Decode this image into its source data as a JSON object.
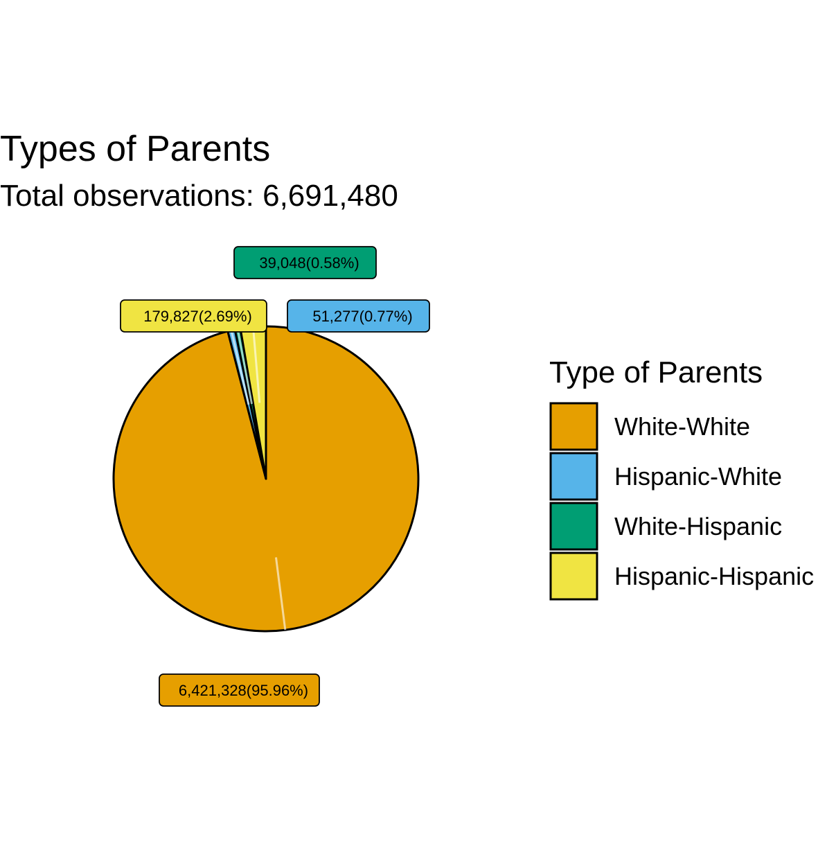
{
  "chart_data": {
    "type": "pie",
    "title": "Types of Parents",
    "subtitle": "Total observations: 6,691,480",
    "legend": {
      "title": "Type of Parents",
      "placement": "right"
    },
    "slices": [
      {
        "name": "White-White",
        "value": 6421328,
        "percent": 95.96,
        "label": "6,421,328(95.96%)",
        "color": "#E69F00"
      },
      {
        "name": "Hispanic-White",
        "value": 51277,
        "percent": 0.77,
        "label": "51,277(0.77%)",
        "color": "#56B4E9"
      },
      {
        "name": "White-Hispanic",
        "value": 39048,
        "percent": 0.58,
        "label": "39,048(0.58%)",
        "color": "#009E73"
      },
      {
        "name": "Hispanic-Hispanic",
        "value": 179827,
        "percent": 2.69,
        "label": "179,827(2.69%)",
        "color": "#F0E442"
      }
    ]
  }
}
